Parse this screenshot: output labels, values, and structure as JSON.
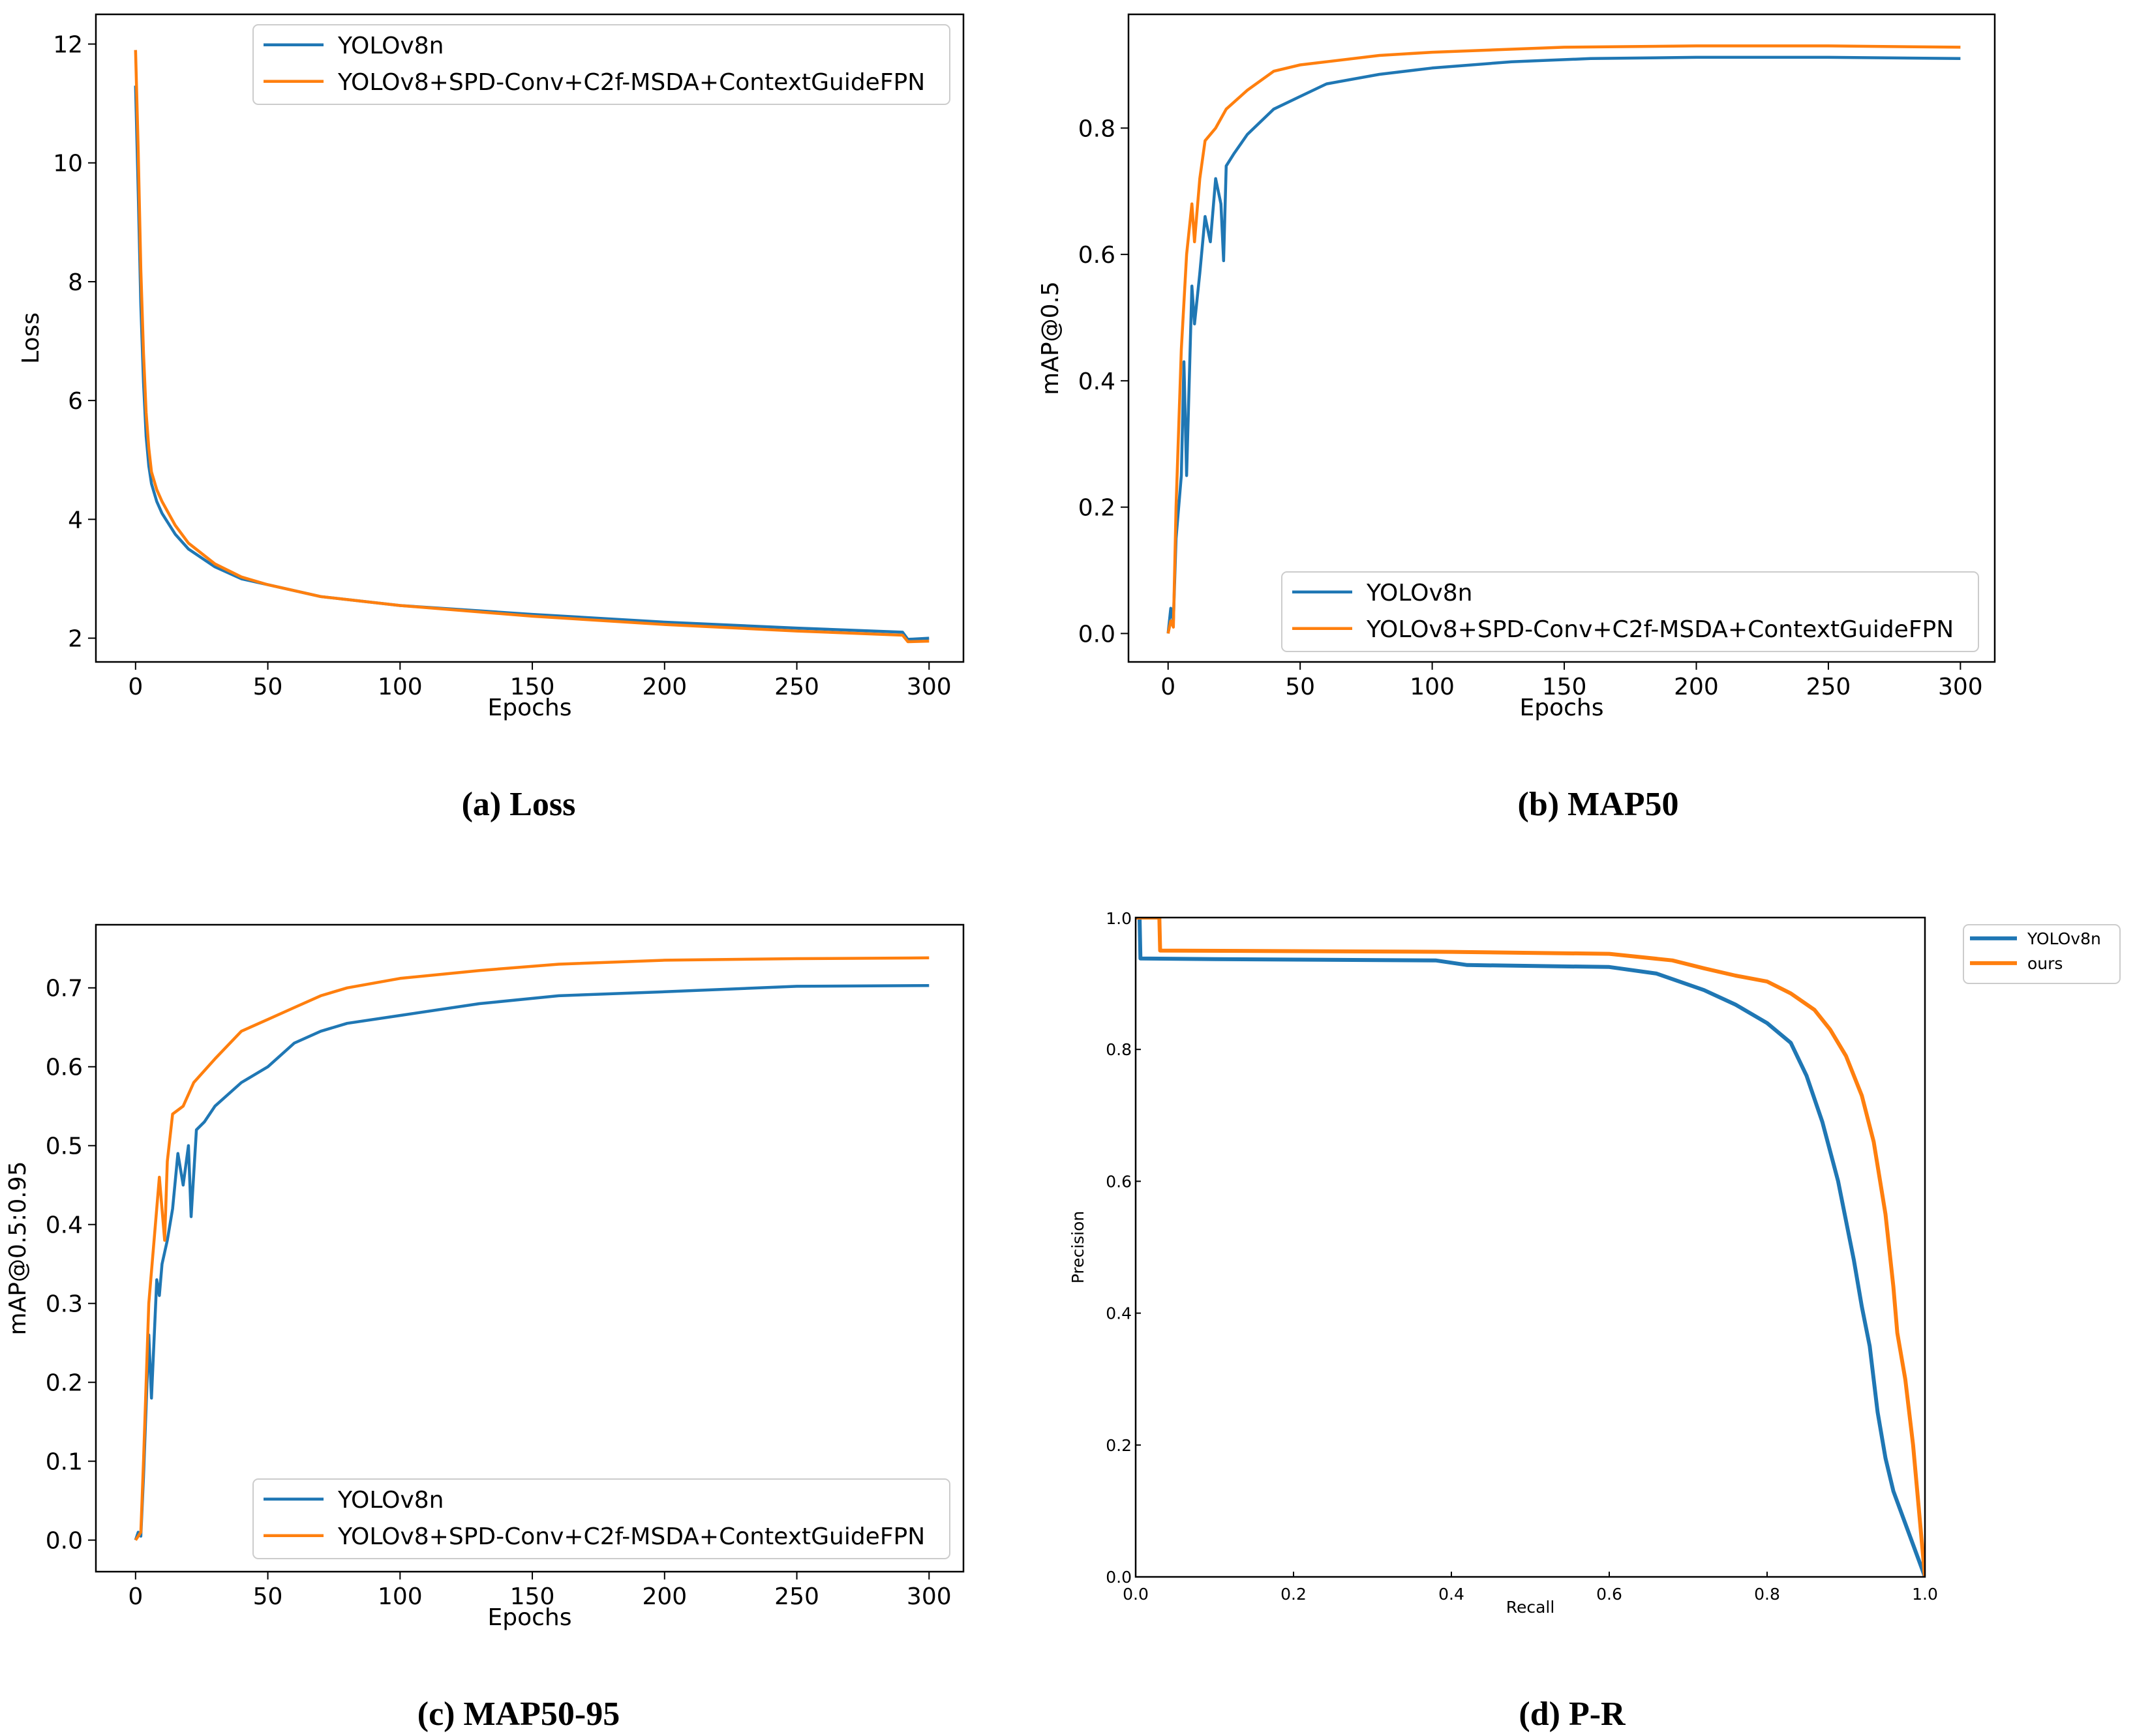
{
  "colors": {
    "baseline": "#1f77b4",
    "ours": "#ff7f0e"
  },
  "chart_data": [
    {
      "id": "loss",
      "type": "line",
      "caption": "(a) Loss",
      "xlabel": "Epochs",
      "ylabel": "Loss",
      "xlim": [
        -15,
        313
      ],
      "ylim": [
        1.6,
        12.5
      ],
      "xticks": [
        0,
        50,
        100,
        150,
        200,
        250,
        300
      ],
      "yticks": [
        2,
        4,
        6,
        8,
        10,
        12
      ],
      "legend": "top-right",
      "series": [
        {
          "name": "YOLOv8n",
          "color": "#1f77b4",
          "points": [
            [
              0,
              11.3
            ],
            [
              1,
              9.5
            ],
            [
              2,
              7.6
            ],
            [
              3,
              6.3
            ],
            [
              4,
              5.4
            ],
            [
              5,
              4.9
            ],
            [
              6,
              4.6
            ],
            [
              8,
              4.3
            ],
            [
              10,
              4.1
            ],
            [
              15,
              3.75
            ],
            [
              20,
              3.5
            ],
            [
              30,
              3.2
            ],
            [
              40,
              3.0
            ],
            [
              50,
              2.9
            ],
            [
              70,
              2.7
            ],
            [
              100,
              2.55
            ],
            [
              150,
              2.4
            ],
            [
              200,
              2.27
            ],
            [
              250,
              2.17
            ],
            [
              290,
              2.1
            ],
            [
              292,
              1.98
            ],
            [
              300,
              2.0
            ]
          ]
        },
        {
          "name": "YOLOv8+SPD-Conv+C2f-MSDA+ContextGuideFPN",
          "color": "#ff7f0e",
          "points": [
            [
              0,
              11.9
            ],
            [
              1,
              10.2
            ],
            [
              2,
              8.2
            ],
            [
              3,
              6.8
            ],
            [
              4,
              5.8
            ],
            [
              5,
              5.2
            ],
            [
              6,
              4.8
            ],
            [
              8,
              4.5
            ],
            [
              10,
              4.3
            ],
            [
              15,
              3.9
            ],
            [
              20,
              3.6
            ],
            [
              30,
              3.25
            ],
            [
              40,
              3.03
            ],
            [
              50,
              2.9
            ],
            [
              70,
              2.7
            ],
            [
              100,
              2.55
            ],
            [
              150,
              2.37
            ],
            [
              200,
              2.23
            ],
            [
              250,
              2.12
            ],
            [
              290,
              2.05
            ],
            [
              292,
              1.94
            ],
            [
              300,
              1.95
            ]
          ]
        }
      ]
    },
    {
      "id": "map50",
      "type": "line",
      "caption": "(b) MAP50",
      "xlabel": "Epochs",
      "ylabel": "mAP@0.5",
      "xlim": [
        -15,
        313
      ],
      "ylim": [
        -0.045,
        0.98
      ],
      "xticks": [
        0,
        50,
        100,
        150,
        200,
        250,
        300
      ],
      "yticks": [
        0.0,
        0.2,
        0.4,
        0.6,
        0.8
      ],
      "legend": "lower-right",
      "series": [
        {
          "name": "YOLOv8n",
          "color": "#1f77b4",
          "points": [
            [
              0,
              0.0
            ],
            [
              1,
              0.04
            ],
            [
              2,
              0.02
            ],
            [
              3,
              0.15
            ],
            [
              5,
              0.25
            ],
            [
              6,
              0.43
            ],
            [
              7,
              0.25
            ],
            [
              9,
              0.55
            ],
            [
              10,
              0.49
            ],
            [
              12,
              0.57
            ],
            [
              14,
              0.66
            ],
            [
              16,
              0.62
            ],
            [
              18,
              0.72
            ],
            [
              20,
              0.68
            ],
            [
              21,
              0.59
            ],
            [
              22,
              0.74
            ],
            [
              25,
              0.76
            ],
            [
              30,
              0.79
            ],
            [
              40,
              0.83
            ],
            [
              50,
              0.85
            ],
            [
              60,
              0.87
            ],
            [
              80,
              0.885
            ],
            [
              100,
              0.895
            ],
            [
              130,
              0.905
            ],
            [
              160,
              0.91
            ],
            [
              200,
              0.912
            ],
            [
              250,
              0.912
            ],
            [
              300,
              0.91
            ]
          ]
        },
        {
          "name": "YOLOv8+SPD-Conv+C2f-MSDA+ContextGuideFPN",
          "color": "#ff7f0e",
          "points": [
            [
              0,
              0.0
            ],
            [
              1,
              0.02
            ],
            [
              2,
              0.01
            ],
            [
              3,
              0.2
            ],
            [
              5,
              0.45
            ],
            [
              7,
              0.6
            ],
            [
              9,
              0.68
            ],
            [
              10,
              0.62
            ],
            [
              12,
              0.72
            ],
            [
              14,
              0.78
            ],
            [
              18,
              0.8
            ],
            [
              22,
              0.83
            ],
            [
              30,
              0.86
            ],
            [
              40,
              0.89
            ],
            [
              50,
              0.9
            ],
            [
              60,
              0.905
            ],
            [
              80,
              0.915
            ],
            [
              100,
              0.92
            ],
            [
              150,
              0.928
            ],
            [
              200,
              0.93
            ],
            [
              250,
              0.93
            ],
            [
              300,
              0.928
            ]
          ]
        }
      ]
    },
    {
      "id": "map5095",
      "type": "line",
      "caption": "(c) MAP50-95",
      "xlabel": "Epochs",
      "ylabel": "mAP@0.5:0.95",
      "xlim": [
        -15,
        313
      ],
      "ylim": [
        -0.04,
        0.78
      ],
      "xticks": [
        0,
        50,
        100,
        150,
        200,
        250,
        300
      ],
      "yticks": [
        0.0,
        0.1,
        0.2,
        0.3,
        0.4,
        0.5,
        0.6,
        0.7
      ],
      "legend": "lower-right",
      "series": [
        {
          "name": "YOLOv8n",
          "color": "#1f77b4",
          "points": [
            [
              0,
              0.0
            ],
            [
              1,
              0.01
            ],
            [
              2,
              0.005
            ],
            [
              3,
              0.08
            ],
            [
              5,
              0.26
            ],
            [
              6,
              0.18
            ],
            [
              8,
              0.33
            ],
            [
              9,
              0.31
            ],
            [
              10,
              0.35
            ],
            [
              12,
              0.38
            ],
            [
              14,
              0.42
            ],
            [
              16,
              0.49
            ],
            [
              18,
              0.45
            ],
            [
              20,
              0.5
            ],
            [
              21,
              0.41
            ],
            [
              23,
              0.52
            ],
            [
              26,
              0.53
            ],
            [
              30,
              0.55
            ],
            [
              40,
              0.58
            ],
            [
              50,
              0.6
            ],
            [
              60,
              0.63
            ],
            [
              70,
              0.645
            ],
            [
              80,
              0.655
            ],
            [
              100,
              0.665
            ],
            [
              130,
              0.68
            ],
            [
              160,
              0.69
            ],
            [
              200,
              0.695
            ],
            [
              250,
              0.702
            ],
            [
              300,
              0.703
            ]
          ]
        },
        {
          "name": "YOLOv8+SPD-Conv+C2f-MSDA+ContextGuideFPN",
          "color": "#ff7f0e",
          "points": [
            [
              0,
              0.0
            ],
            [
              1,
              0.005
            ],
            [
              2,
              0.01
            ],
            [
              3,
              0.1
            ],
            [
              5,
              0.3
            ],
            [
              7,
              0.38
            ],
            [
              9,
              0.46
            ],
            [
              11,
              0.38
            ],
            [
              12,
              0.48
            ],
            [
              14,
              0.54
            ],
            [
              18,
              0.55
            ],
            [
              22,
              0.58
            ],
            [
              30,
              0.61
            ],
            [
              40,
              0.645
            ],
            [
              50,
              0.66
            ],
            [
              60,
              0.675
            ],
            [
              70,
              0.69
            ],
            [
              80,
              0.7
            ],
            [
              100,
              0.712
            ],
            [
              130,
              0.722
            ],
            [
              160,
              0.73
            ],
            [
              200,
              0.735
            ],
            [
              250,
              0.737
            ],
            [
              300,
              0.738
            ]
          ]
        }
      ]
    },
    {
      "id": "pr",
      "type": "line",
      "caption": "(d) P-R",
      "xlabel": "Recall",
      "ylabel": "Precision",
      "xlim": [
        0.0,
        1.0
      ],
      "ylim": [
        0.0,
        1.0
      ],
      "xticks": [
        0.0,
        0.2,
        0.4,
        0.6,
        0.8,
        1.0
      ],
      "yticks": [
        0.0,
        0.2,
        0.4,
        0.6,
        0.8,
        1.0
      ],
      "legend": "outside-right",
      "series": [
        {
          "name": "YOLOv8n",
          "color": "#1f77b4",
          "points": [
            [
              0.0,
              1.0
            ],
            [
              0.005,
              1.0
            ],
            [
              0.006,
              0.938
            ],
            [
              0.1,
              0.937
            ],
            [
              0.38,
              0.935
            ],
            [
              0.42,
              0.928
            ],
            [
              0.6,
              0.925
            ],
            [
              0.66,
              0.915
            ],
            [
              0.72,
              0.89
            ],
            [
              0.76,
              0.868
            ],
            [
              0.8,
              0.84
            ],
            [
              0.83,
              0.81
            ],
            [
              0.85,
              0.76
            ],
            [
              0.87,
              0.69
            ],
            [
              0.89,
              0.6
            ],
            [
              0.91,
              0.48
            ],
            [
              0.92,
              0.41
            ],
            [
              0.93,
              0.35
            ],
            [
              0.94,
              0.25
            ],
            [
              0.95,
              0.18
            ],
            [
              0.96,
              0.13
            ],
            [
              1.0,
              0.0
            ]
          ]
        },
        {
          "name": "ours",
          "color": "#ff7f0e",
          "points": [
            [
              0.0,
              1.0
            ],
            [
              0.03,
              1.0
            ],
            [
              0.031,
              0.95
            ],
            [
              0.4,
              0.948
            ],
            [
              0.6,
              0.945
            ],
            [
              0.68,
              0.935
            ],
            [
              0.72,
              0.923
            ],
            [
              0.76,
              0.912
            ],
            [
              0.8,
              0.903
            ],
            [
              0.83,
              0.885
            ],
            [
              0.86,
              0.86
            ],
            [
              0.88,
              0.83
            ],
            [
              0.9,
              0.79
            ],
            [
              0.92,
              0.73
            ],
            [
              0.935,
              0.66
            ],
            [
              0.95,
              0.55
            ],
            [
              0.96,
              0.44
            ],
            [
              0.965,
              0.37
            ],
            [
              0.975,
              0.3
            ],
            [
              0.985,
              0.2
            ],
            [
              1.0,
              0.0
            ]
          ]
        }
      ]
    }
  ]
}
